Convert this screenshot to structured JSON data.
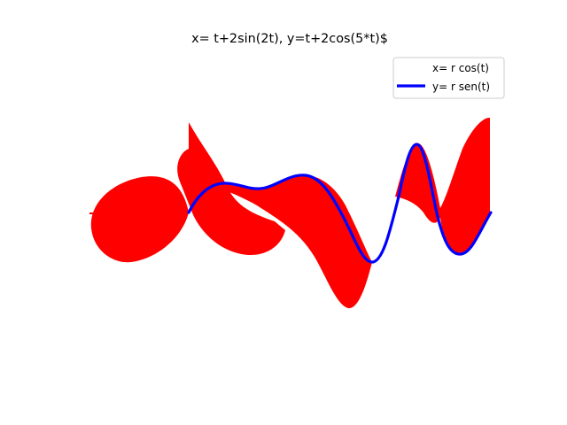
{
  "chart_data": {
    "type": "area",
    "title": "x= t+2sin(2t), y=t+2cos(5*t)$",
    "xlabel": "",
    "ylabel": "",
    "axes_visible": false,
    "grid": false,
    "legend_position": "top-right",
    "series": [
      {
        "name": "x= r cos(t)",
        "kind": "filled-area",
        "color": "#ff0000",
        "legend_line": "none"
      },
      {
        "name": "y= r sen(t)",
        "kind": "line",
        "color": "#0000ff",
        "linewidth": 3
      }
    ]
  },
  "colors": {
    "fill": "#ff0000",
    "line": "#0000ff",
    "background": "#ffffff"
  }
}
